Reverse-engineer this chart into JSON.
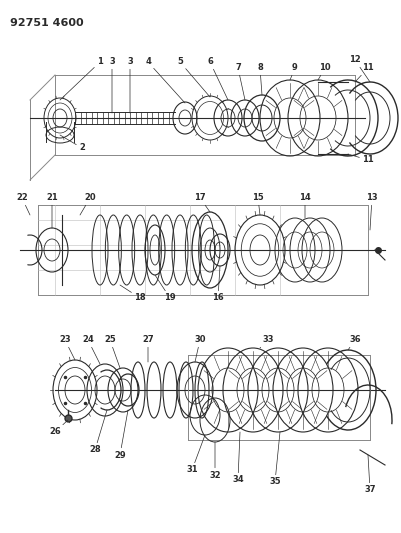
{
  "title": "92751 4600",
  "bg_color": "#ffffff",
  "line_color": "#000000",
  "dark_color": "#2a2a2a",
  "gray_color": "#888888",
  "fig_w": 4.01,
  "fig_h": 5.33,
  "dpi": 100,
  "title_fontsize": 8,
  "label_fontsize": 6
}
